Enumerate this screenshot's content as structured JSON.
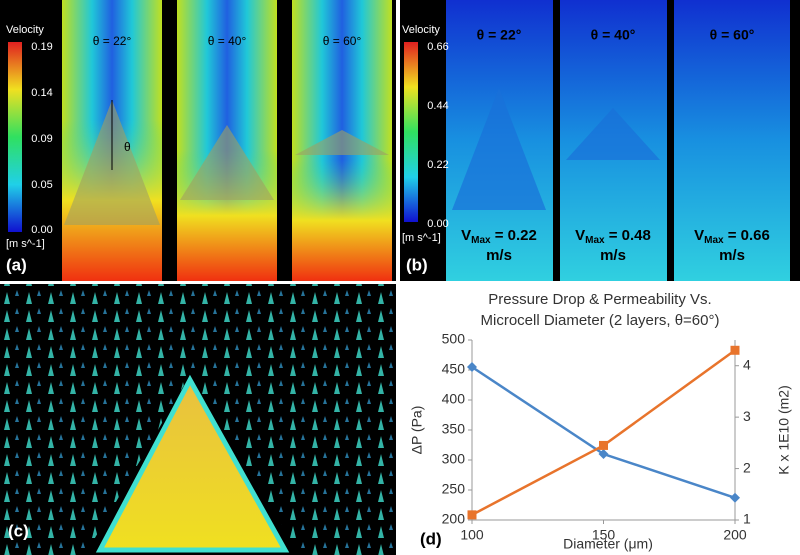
{
  "panel_a": {
    "label": "(a)",
    "legend_title": "Velocity",
    "legend_ticks": [
      "0.19",
      "0.14",
      "0.09",
      "0.05",
      "0.00"
    ],
    "legend_unit": "[m s^-1]",
    "angles": [
      "θ = 22°",
      "θ = 40°",
      "θ = 60°"
    ],
    "theta": "θ"
  },
  "panel_b": {
    "label": "(b)",
    "legend_title": "Velocity",
    "legend_ticks": [
      "0.66",
      "0.44",
      "0.22",
      "0.00"
    ],
    "legend_unit": "[m s^-1]",
    "angles": [
      "θ = 22°",
      "θ = 40°",
      "θ = 60°"
    ],
    "vmax": [
      {
        "v": "V",
        "sub": "Max",
        "value": " = 0.22",
        "unit": "m/s"
      },
      {
        "v": "V",
        "sub": "Max",
        "value": " = 0.48",
        "unit": "m/s"
      },
      {
        "v": "V",
        "sub": "Max",
        "value": " = 0.66",
        "unit": "m/s"
      }
    ]
  },
  "panel_c": {
    "label": "(c)"
  },
  "chart_data": {
    "type": "line",
    "label": "(d)",
    "title": [
      "Pressure Drop & Permeability Vs.",
      "Microcell Diameter (2 layers, θ=60°)"
    ],
    "x_label": "Diameter (μm)",
    "y_label": "ΔP (Pa)",
    "y2_label": "K x 1E10 (m2)",
    "x": [
      100,
      150,
      200
    ],
    "xlim": [
      100,
      200
    ],
    "xticks": [
      100,
      150,
      200
    ],
    "ylim": [
      200,
      500
    ],
    "yticks": [
      200,
      250,
      300,
      350,
      400,
      450,
      500
    ],
    "y2lim": [
      1,
      4.5
    ],
    "y2ticks": [
      1,
      2,
      3,
      4
    ],
    "series": [
      {
        "color": "#4a86c8",
        "marker": "diamond",
        "values": [
          455,
          310,
          237
        ]
      },
      {
        "color": "#e8742c",
        "marker": "square",
        "axis": "y2",
        "values": [
          1.1,
          2.45,
          4.3
        ]
      }
    ]
  }
}
